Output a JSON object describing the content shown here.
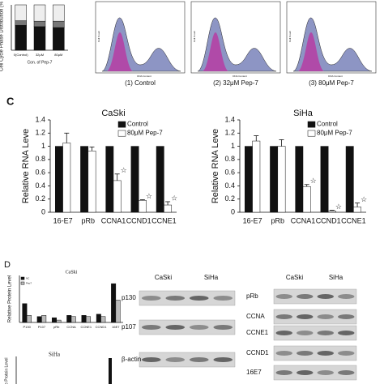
{
  "chart_data": [
    {
      "type": "bar",
      "stacked": true,
      "y_label": "Cell Cycle Phase Distribution (% of total)",
      "x_label": "Con. of Pep-7",
      "categories": [
        "0(Control)",
        "32μM",
        "80μM"
      ],
      "ylim": [
        0,
        100
      ],
      "series": [
        {
          "color": "#111111",
          "values": [
            55,
            52,
            50
          ]
        },
        {
          "color": "#777777",
          "values": [
            10,
            12,
            14
          ]
        },
        {
          "color": "#eeeeee",
          "values": [
            35,
            36,
            36
          ]
        }
      ]
    },
    {
      "type": "bar",
      "title": "CaSki",
      "y_label": "Relative RNA Leve",
      "legend": "top-right",
      "categories": [
        "16-E7",
        "pRb",
        "CCNA1",
        "CCND1",
        "CCNE1"
      ],
      "ylim": [
        0,
        1.4
      ],
      "yticks": [
        0,
        0.2,
        0.4,
        0.6,
        0.8,
        1,
        1.2,
        1.4
      ],
      "star": "☆",
      "starred": [
        false,
        false,
        true,
        true,
        true
      ],
      "series": [
        {
          "name": "Control",
          "color": "#111111",
          "values": [
            1,
            1,
            1,
            1,
            1
          ]
        },
        {
          "name": "80μM Pep-7",
          "color": "#ffffff",
          "values": [
            1.05,
            0.93,
            0.48,
            0.18,
            0.11
          ],
          "errors": [
            0.15,
            0.06,
            0.1,
            0.01,
            0.05
          ]
        }
      ]
    },
    {
      "type": "bar",
      "title": "SiHa",
      "y_label": "Relative RNA Leve",
      "legend": "top-right",
      "categories": [
        "16-E7",
        "pRb",
        "CCNA1",
        "CCND1",
        "CCNE1"
      ],
      "ylim": [
        0,
        1.4
      ],
      "yticks": [
        0,
        0.2,
        0.4,
        0.6,
        0.8,
        1,
        1.2,
        1.4
      ],
      "star": "☆",
      "starred": [
        false,
        false,
        true,
        true,
        true
      ],
      "series": [
        {
          "name": "Control",
          "color": "#111111",
          "values": [
            1,
            1,
            1,
            1,
            1
          ]
        },
        {
          "name": "80μM Pep-7",
          "color": "#ffffff",
          "values": [
            1.08,
            1,
            0.39,
            0.02,
            0.08
          ],
          "errors": [
            0.08,
            0.1,
            0.03,
            0.01,
            0.06
          ]
        }
      ]
    },
    {
      "type": "bar",
      "title": "CaSki",
      "y_label": "Relative Protein Level",
      "legend": "top-left",
      "categories": [
        "P130",
        "P107",
        "pRb",
        "CCNA",
        "CCNE1",
        "CCND1",
        "16E7"
      ],
      "ylim": [
        0,
        4
      ],
      "series": [
        {
          "name": "NC",
          "color": "#111111",
          "values": [
            1.6,
            0.5,
            0.4,
            0.6,
            0.6,
            0.7,
            3.3
          ]
        },
        {
          "name": "Pep7",
          "color": "#bbbbbb",
          "values": [
            0.6,
            0.6,
            0.2,
            0.5,
            0.5,
            0.5,
            1.9
          ]
        }
      ]
    }
  ],
  "flow": {
    "y_label": "Cell Count",
    "x_label": "DNA Content",
    "panels": [
      "(1) Control",
      "(2) 32μM Pep-7",
      "(3) 80μM Pep-7"
    ]
  },
  "panel_labels": {
    "c": "C",
    "d": "D"
  },
  "small_chart_2": {
    "title": "SiHa",
    "y_label": "ive Protein Level"
  },
  "blots_left": {
    "cell_lines": [
      "CaSki",
      "SiHa"
    ],
    "proteins": [
      "p130",
      "p107",
      "β-actin"
    ]
  },
  "blots_right": {
    "cell_lines": [
      "CaSki",
      "SiHa"
    ],
    "proteins": [
      "pRb",
      "CCNA",
      "CCNE1",
      "CCND1",
      "16E7"
    ]
  }
}
